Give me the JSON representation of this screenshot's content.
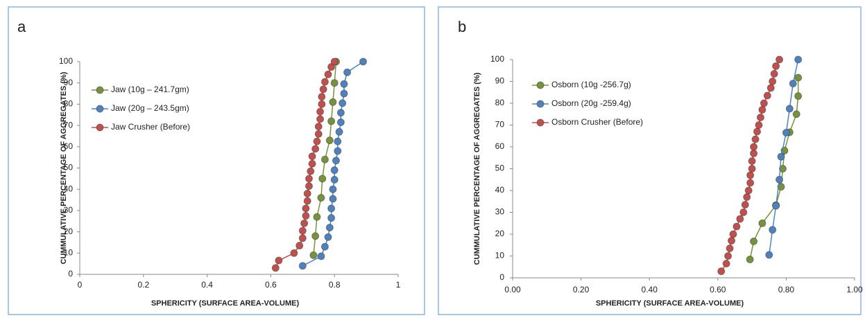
{
  "chart_data": [
    {
      "type": "line",
      "label": "a",
      "xlabel": "SPHERICITY (SURFACE AREA-VOLUME)",
      "ylabel": "CUMMULATIVE PERCENTAGE OF AGGREGATES (%)",
      "xlim": [
        0,
        1
      ],
      "xticks": [
        0,
        0.2,
        0.4,
        0.6,
        0.8,
        1
      ],
      "ylim": [
        0,
        100
      ],
      "yticks": [
        0,
        10,
        20,
        30,
        40,
        50,
        60,
        70,
        80,
        90,
        100
      ],
      "series": [
        {
          "name": "Jaw  (10g – 241.7gm)",
          "color": "#76923c",
          "x": [
            0.734,
            0.74,
            0.745,
            0.758,
            0.762,
            0.77,
            0.785,
            0.79,
            0.795,
            0.8,
            0.805
          ],
          "values": [
            9,
            18,
            27,
            36,
            45,
            54,
            63,
            72,
            81,
            90,
            100
          ]
        },
        {
          "name": "Jaw  (20g – 243.5gm)",
          "color": "#4f81bd",
          "x": [
            0.7,
            0.758,
            0.77,
            0.78,
            0.785,
            0.79,
            0.79,
            0.795,
            0.795,
            0.8,
            0.8,
            0.805,
            0.81,
            0.81,
            0.815,
            0.82,
            0.82,
            0.825,
            0.83,
            0.83,
            0.84,
            0.89
          ],
          "values": [
            4,
            8.5,
            13,
            17.5,
            22,
            26.5,
            31,
            35.5,
            40,
            44.5,
            49,
            53.5,
            58,
            62.5,
            67,
            71.5,
            76,
            80.5,
            85,
            89.5,
            95,
            100
          ]
        },
        {
          "name": "Jaw Crusher (Before)",
          "color": "#c0504d",
          "x": [
            0.615,
            0.625,
            0.673,
            0.69,
            0.7,
            0.7,
            0.705,
            0.71,
            0.71,
            0.715,
            0.715,
            0.72,
            0.72,
            0.725,
            0.73,
            0.73,
            0.74,
            0.745,
            0.75,
            0.75,
            0.755,
            0.755,
            0.76,
            0.76,
            0.765,
            0.77,
            0.78,
            0.79,
            0.8
          ],
          "values": [
            3,
            6.5,
            10,
            13.5,
            17,
            20.5,
            24,
            27.5,
            31,
            34.5,
            38,
            41.5,
            45,
            48.5,
            52,
            55.5,
            59,
            62.5,
            66,
            69.5,
            73,
            76.5,
            80,
            83.5,
            87,
            90.5,
            94,
            97.5,
            100
          ]
        }
      ]
    },
    {
      "type": "line",
      "label": "b",
      "xlabel": "SPHERICITY (SURFACE AREA-VOLUME)",
      "ylabel": "CUMMULATIVE PERCENTAGE OF AGGREGATES (%)",
      "xlim": [
        0,
        1
      ],
      "xticks": [
        {
          "value": 0,
          "label": "0.00"
        },
        {
          "value": 0.2,
          "label": "0.20"
        },
        {
          "value": 0.4,
          "label": "0.40"
        },
        {
          "value": 0.6,
          "label": "0.60"
        },
        {
          "value": 0.8,
          "label": "0.80"
        },
        {
          "value": 1,
          "label": "1.00"
        }
      ],
      "ylim": [
        0,
        100
      ],
      "yticks": [
        0,
        10,
        20,
        30,
        40,
        50,
        60,
        70,
        80,
        90,
        100
      ],
      "series": [
        {
          "name": "Osborn (10g -256.7g)",
          "color": "#76923c",
          "x": [
            0.694,
            0.705,
            0.73,
            0.77,
            0.785,
            0.79,
            0.795,
            0.81,
            0.83,
            0.835,
            0.835
          ],
          "values": [
            8.4,
            16.7,
            25,
            33.3,
            41.7,
            50,
            58.3,
            66.7,
            75,
            83.3,
            91.7
          ]
        },
        {
          "name": "Osborn (20g -259.4g)",
          "color": "#4f81bd",
          "x": [
            0.75,
            0.76,
            0.77,
            0.78,
            0.785,
            0.8,
            0.81,
            0.82,
            0.835
          ],
          "values": [
            10.5,
            22,
            33,
            45,
            55.5,
            66.5,
            77.5,
            89,
            100
          ]
        },
        {
          "name": "Osborn Crusher (Before)",
          "color": "#c0504d",
          "x": [
            0.61,
            0.625,
            0.63,
            0.635,
            0.64,
            0.645,
            0.655,
            0.665,
            0.675,
            0.68,
            0.685,
            0.69,
            0.695,
            0.695,
            0.7,
            0.7,
            0.705,
            0.705,
            0.71,
            0.715,
            0.72,
            0.725,
            0.73,
            0.735,
            0.745,
            0.755,
            0.76,
            0.765,
            0.77,
            0.78
          ],
          "values": [
            3,
            6.5,
            10,
            13.5,
            17,
            20,
            23.5,
            27,
            30,
            33.5,
            37,
            40,
            43.5,
            47,
            50,
            53.5,
            57,
            60,
            63.5,
            67,
            70,
            73.5,
            77,
            80,
            83.5,
            87,
            90,
            93.5,
            97,
            100
          ]
        }
      ]
    }
  ]
}
